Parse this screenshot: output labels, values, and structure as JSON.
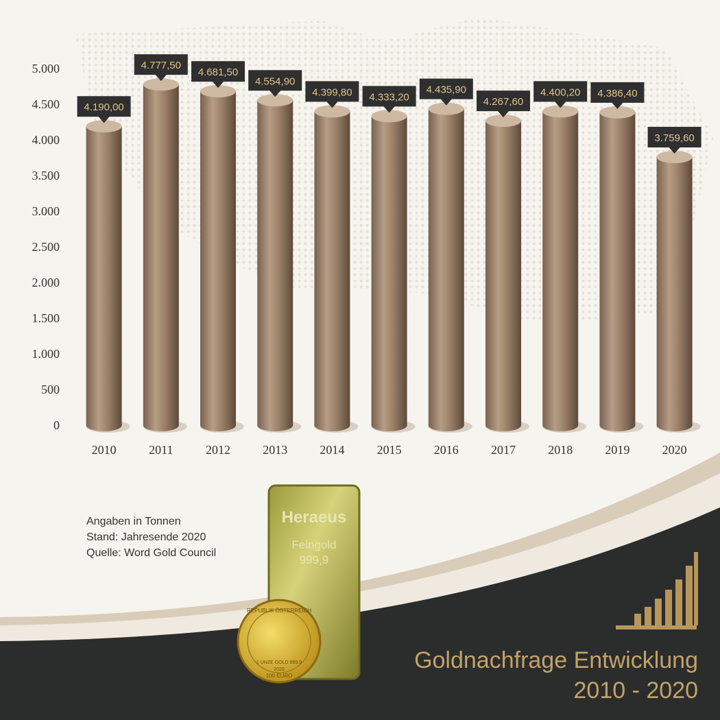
{
  "chart_data": {
    "type": "bar",
    "title": "Goldnachfrage Entwicklung",
    "subtitle": "2010 - 2020",
    "notes": [
      "Angaben in Tonnen",
      "Stand: Jahresende 2020",
      "Quelle: Word Gold Council"
    ],
    "categories": [
      "2010",
      "2011",
      "2012",
      "2013",
      "2014",
      "2015",
      "2016",
      "2017",
      "2018",
      "2019",
      "2020"
    ],
    "values": [
      4190.0,
      4777.5,
      4681.5,
      4554.9,
      4399.8,
      4333.2,
      4435.9,
      4267.6,
      4400.2,
      4386.4,
      3759.6
    ],
    "value_labels": [
      "4.190,00",
      "4.777,50",
      "4.681,50",
      "4.554,90",
      "4.399,80",
      "4.333,20",
      "4.435,90",
      "4.267,60",
      "4.400,20",
      "4.386,40",
      "3.759,60"
    ],
    "color": "#9c8169",
    "ylim": [
      0,
      5000
    ],
    "yticks": [
      0,
      500,
      {
        "value": 1000,
        "label": "1.000"
      },
      {
        "value": 1500,
        "label": "1.500"
      },
      {
        "value": 2000,
        "label": "2.000"
      },
      {
        "value": 2500,
        "label": "2.500"
      },
      {
        "value": 3000,
        "label": "3.000"
      },
      {
        "value": 3500,
        "label": "3.500"
      },
      {
        "value": 4000,
        "label": "4.000"
      },
      {
        "value": 4500,
        "label": "4.500"
      },
      {
        "value": 5000,
        "label": "5.000"
      }
    ],
    "grid": false
  },
  "product_image": {
    "bar_texts": [
      "Heraeus",
      "Feingold",
      "999,9"
    ],
    "coin_texts": [
      "REPUBLIK ÖSTERREICH",
      "1 UNZE GOLD 999.9",
      "2020",
      "100 EURO"
    ]
  }
}
